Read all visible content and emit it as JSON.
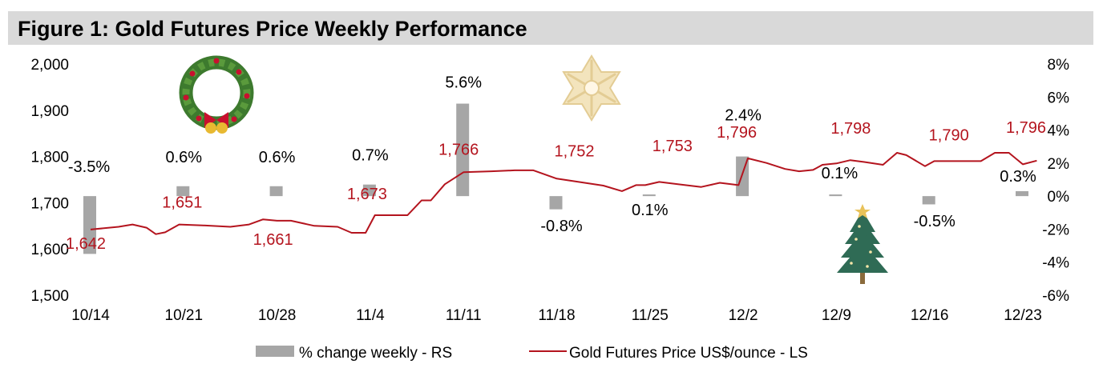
{
  "title": "Figure 1: Gold Futures Price Weekly Performance",
  "colors": {
    "bar": "#a6a6a6",
    "line": "#b4141e",
    "title_bg": "#d9d9d9"
  },
  "chart_data": {
    "type": "bar+line",
    "title": "Figure 1: Gold Futures Price Weekly Performance",
    "x_ticks": [
      "10/14",
      "10/21",
      "10/28",
      "11/4",
      "11/11",
      "11/18",
      "11/25",
      "12/2",
      "12/9",
      "12/16",
      "12/23"
    ],
    "left_axis": {
      "label": "Gold Futures Price US$/ounce",
      "min": 1500,
      "max": 2000,
      "ticks": [
        "1,500",
        "1,600",
        "1,700",
        "1,800",
        "1,900",
        "2,000"
      ]
    },
    "right_axis": {
      "label": "% change weekly",
      "min": -6,
      "max": 8,
      "ticks": [
        "-6%",
        "-4%",
        "-2%",
        "0%",
        "2%",
        "4%",
        "6%",
        "8%"
      ]
    },
    "bars": {
      "name": "% change weekly - RS",
      "values": [
        -3.5,
        0.6,
        0.6,
        0.7,
        5.6,
        -0.8,
        0.1,
        2.4,
        0.1,
        -0.5,
        0.3
      ],
      "labels": [
        "-3.5%",
        "0.6%",
        "0.6%",
        "0.7%",
        "5.6%",
        "-0.8%",
        "0.1%",
        "2.4%",
        "0.1%",
        "-0.5%",
        "0.3%"
      ]
    },
    "line": {
      "name": "Gold Futures Price US$/ounce - LS",
      "points": [
        [
          0,
          1642
        ],
        [
          0.3,
          1648
        ],
        [
          0.45,
          1653
        ],
        [
          0.6,
          1646
        ],
        [
          0.7,
          1632
        ],
        [
          0.8,
          1636
        ],
        [
          0.95,
          1653
        ],
        [
          1.2,
          1651
        ],
        [
          1.5,
          1648
        ],
        [
          1.7,
          1653
        ],
        [
          1.85,
          1664
        ],
        [
          2.0,
          1661
        ],
        [
          2.15,
          1661
        ],
        [
          2.4,
          1650
        ],
        [
          2.65,
          1648
        ],
        [
          2.8,
          1635
        ],
        [
          2.95,
          1635
        ],
        [
          3.05,
          1673
        ],
        [
          3.4,
          1673
        ],
        [
          3.55,
          1705
        ],
        [
          3.65,
          1705
        ],
        [
          3.8,
          1740
        ],
        [
          4.0,
          1766
        ],
        [
          4.3,
          1768
        ],
        [
          4.55,
          1770
        ],
        [
          4.75,
          1770
        ],
        [
          5.0,
          1752
        ],
        [
          5.2,
          1746
        ],
        [
          5.5,
          1737
        ],
        [
          5.7,
          1725
        ],
        [
          5.85,
          1738
        ],
        [
          5.95,
          1738
        ],
        [
          6.1,
          1745
        ],
        [
          6.3,
          1740
        ],
        [
          6.55,
          1734
        ],
        [
          6.75,
          1743
        ],
        [
          6.95,
          1738
        ],
        [
          7.05,
          1796
        ],
        [
          7.25,
          1786
        ],
        [
          7.45,
          1773
        ],
        [
          7.6,
          1768
        ],
        [
          7.75,
          1771
        ],
        [
          7.85,
          1782
        ],
        [
          8.0,
          1785
        ],
        [
          8.15,
          1792
        ],
        [
          8.3,
          1788
        ],
        [
          8.5,
          1782
        ],
        [
          8.65,
          1808
        ],
        [
          8.75,
          1803
        ],
        [
          8.95,
          1779
        ],
        [
          9.05,
          1790
        ],
        [
          9.35,
          1790
        ],
        [
          9.55,
          1790
        ],
        [
          9.7,
          1808
        ],
        [
          9.85,
          1808
        ],
        [
          10.0,
          1783
        ],
        [
          10.15,
          1791
        ]
      ],
      "labels": [
        {
          "text": "1,642",
          "x": 0,
          "v": 1642
        },
        {
          "text": "1,651",
          "x": 1,
          "v": 1651
        },
        {
          "text": "1,661",
          "x": 2,
          "v": 1661
        },
        {
          "text": "1,673",
          "x": 3,
          "v": 1673
        },
        {
          "text": "1,766",
          "x": 4,
          "v": 1766
        },
        {
          "text": "1,752",
          "x": 5,
          "v": 1752
        },
        {
          "text": "1,753",
          "x": 6,
          "v": 1753
        },
        {
          "text": "1,796",
          "x": 7,
          "v": 1796
        },
        {
          "text": "1,798",
          "x": 8,
          "v": 1798
        },
        {
          "text": "1,790",
          "x": 9,
          "v": 1790
        },
        {
          "text": "1,796",
          "x": 10,
          "v": 1796
        }
      ]
    },
    "legend": [
      "% change weekly - RS",
      "Gold Futures Price US$/ounce - LS"
    ]
  },
  "decorations": [
    "wreath-icon",
    "snowflake-icon",
    "christmas-tree-icon"
  ]
}
